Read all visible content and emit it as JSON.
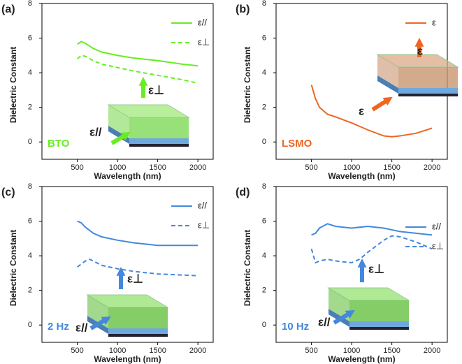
{
  "chart_data": [
    {
      "type": "line",
      "panel": "(a)",
      "xlabel": "Wavelength (nm)",
      "ylabel": "Dielectric Constant",
      "annotation": "BTO",
      "inset_labels": [
        "ε⊥",
        "ε//"
      ],
      "legend": "upper right",
      "xlim": [
        60,
        2190
      ],
      "xticks": [
        500,
        1000,
        1500,
        2000
      ],
      "ylim": [
        -1,
        8
      ],
      "yticks": [
        0,
        2,
        4,
        6,
        8
      ],
      "series": [
        {
          "name": "ε//",
          "color": "#66ee22",
          "linestyle": "solid",
          "x": [
            500,
            550,
            600,
            700,
            800,
            1000,
            1200,
            1500,
            1800,
            2000
          ],
          "values": [
            5.65,
            5.8,
            5.7,
            5.4,
            5.2,
            5.0,
            4.85,
            4.7,
            4.5,
            4.4
          ]
        },
        {
          "name": "ε⊥",
          "color": "#66ee22",
          "linestyle": "dashed",
          "x": [
            500,
            550,
            600,
            700,
            800,
            1000,
            1200,
            1500,
            1800,
            2000
          ],
          "values": [
            4.8,
            5.0,
            4.95,
            4.7,
            4.5,
            4.3,
            4.1,
            3.85,
            3.6,
            3.4
          ]
        }
      ]
    },
    {
      "type": "line",
      "panel": "(b)",
      "xlabel": "Wavelength (nm)",
      "ylabel": "Dielectric Constant",
      "annotation": "LSMO",
      "inset_labels": [
        "ε",
        "ε"
      ],
      "legend": "upper right",
      "xlim": [
        60,
        2190
      ],
      "xticks": [
        500,
        1000,
        1500,
        2000
      ],
      "ylim": [
        -1,
        8
      ],
      "yticks": [
        0,
        2,
        4,
        6,
        8
      ],
      "series": [
        {
          "name": "ε",
          "color": "#ee6622",
          "linestyle": "solid",
          "x": [
            500,
            550,
            600,
            700,
            800,
            1000,
            1200,
            1400,
            1500,
            1600,
            1800,
            2000
          ],
          "values": [
            3.3,
            2.5,
            2.0,
            1.6,
            1.45,
            1.1,
            0.7,
            0.35,
            0.3,
            0.35,
            0.5,
            0.8
          ]
        }
      ]
    },
    {
      "type": "line",
      "panel": "(c)",
      "xlabel": "Wavelength (nm)",
      "ylabel": "Dielectric Constant",
      "annotation": "2 Hz",
      "inset_labels": [
        "ε⊥",
        "ε//"
      ],
      "legend": "upper right",
      "xlim": [
        60,
        2190
      ],
      "xticks": [
        500,
        1000,
        1500,
        2000
      ],
      "ylim": [
        -1,
        8
      ],
      "yticks": [
        0,
        2,
        4,
        6,
        8
      ],
      "series": [
        {
          "name": "ε//",
          "color": "#4488dd",
          "linestyle": "solid",
          "x": [
            500,
            550,
            600,
            700,
            800,
            1000,
            1200,
            1500,
            2000
          ],
          "values": [
            6.0,
            5.9,
            5.65,
            5.3,
            5.1,
            4.9,
            4.75,
            4.6,
            4.6
          ]
        },
        {
          "name": "ε⊥",
          "color": "#4488dd",
          "linestyle": "dashed",
          "x": [
            500,
            600,
            650,
            700,
            800,
            1000,
            1200,
            1500,
            2000
          ],
          "values": [
            3.35,
            3.7,
            3.8,
            3.7,
            3.45,
            3.25,
            3.1,
            2.95,
            2.85
          ]
        }
      ]
    },
    {
      "type": "line",
      "panel": "(d)",
      "xlabel": "Wavelength (nm)",
      "ylabel": "Dielectric Constant",
      "annotation": "10 Hz",
      "inset_labels": [
        "ε⊥",
        "ε//"
      ],
      "legend": "center right",
      "xlim": [
        60,
        2190
      ],
      "xticks": [
        500,
        1000,
        1500,
        2000
      ],
      "ylim": [
        -1,
        8
      ],
      "yticks": [
        0,
        2,
        4,
        6,
        8
      ],
      "series": [
        {
          "name": "ε//",
          "color": "#4488dd",
          "linestyle": "solid",
          "x": [
            500,
            550,
            600,
            700,
            800,
            1000,
            1200,
            1400,
            1600,
            2000
          ],
          "values": [
            5.2,
            5.3,
            5.6,
            5.85,
            5.7,
            5.6,
            5.7,
            5.6,
            5.4,
            5.2
          ]
        },
        {
          "name": "ε⊥",
          "color": "#4488dd",
          "linestyle": "dashed",
          "x": [
            500,
            550,
            600,
            700,
            800,
            1000,
            1100,
            1200,
            1400,
            1500,
            1600,
            1800,
            2000
          ],
          "values": [
            4.4,
            3.6,
            3.7,
            3.8,
            3.7,
            3.6,
            3.8,
            4.2,
            4.9,
            5.15,
            5.1,
            4.8,
            4.4
          ]
        }
      ]
    }
  ]
}
